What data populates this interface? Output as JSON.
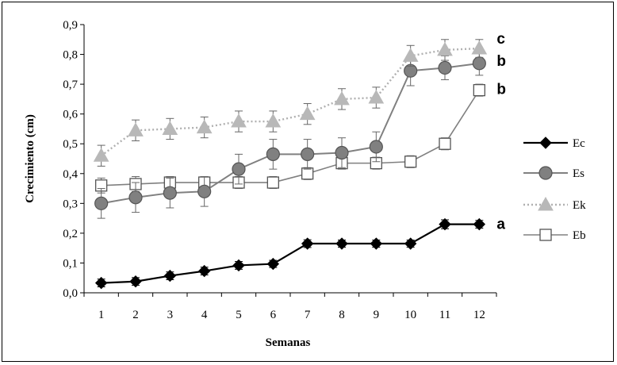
{
  "chart_data": {
    "type": "line",
    "xlabel": "Semanas",
    "ylabel": "Crecimiento (cm)",
    "x": [
      1,
      2,
      3,
      4,
      5,
      6,
      7,
      8,
      9,
      10,
      11,
      12
    ],
    "ylim": [
      0,
      0.9
    ],
    "yticks": [
      "0,0",
      "0,1",
      "0,2",
      "0,3",
      "0,4",
      "0,5",
      "0,6",
      "0,7",
      "0,8",
      "0,9"
    ],
    "yticks_values": [
      0,
      0.1,
      0.2,
      0.3,
      0.4,
      0.5,
      0.6,
      0.7,
      0.8,
      0.9
    ],
    "grid": false,
    "legend_position": "right",
    "series": [
      {
        "name": "Ec",
        "marker": "diamond",
        "line": "solid",
        "color": "#000000",
        "values": [
          0.033,
          0.038,
          0.057,
          0.073,
          0.092,
          0.097,
          0.165,
          0.165,
          0.165,
          0.165,
          0.23,
          0.23
        ],
        "errors": [
          0.013,
          0.013,
          0.013,
          0.013,
          0.013,
          0.012,
          0.013,
          0.012,
          0.012,
          0.012,
          0.015,
          0.013
        ],
        "annotation": "a"
      },
      {
        "name": "Es",
        "marker": "circle",
        "line": "solid",
        "color": "#808080",
        "values": [
          0.3,
          0.32,
          0.335,
          0.34,
          0.415,
          0.465,
          0.465,
          0.47,
          0.49,
          0.745,
          0.755,
          0.77
        ],
        "errors": [
          0.05,
          0.05,
          0.05,
          0.05,
          0.05,
          0.05,
          0.05,
          0.05,
          0.05,
          0.05,
          0.04,
          0.04
        ],
        "annotation": "b"
      },
      {
        "name": "Ek",
        "marker": "triangle",
        "line": "dotted",
        "color": "#b0b0b0",
        "values": [
          0.46,
          0.545,
          0.55,
          0.555,
          0.575,
          0.575,
          0.6,
          0.65,
          0.655,
          0.795,
          0.815,
          0.82
        ],
        "errors": [
          0.035,
          0.035,
          0.035,
          0.035,
          0.035,
          0.035,
          0.035,
          0.035,
          0.035,
          0.035,
          0.035,
          0.03
        ],
        "annotation": "c"
      },
      {
        "name": "Eb",
        "marker": "square",
        "line": "solid",
        "color": "#808080",
        "values": [
          0.36,
          0.365,
          0.37,
          0.37,
          0.37,
          0.37,
          0.4,
          0.435,
          0.435,
          0.44,
          0.5,
          0.68
        ],
        "errors": [
          0.025,
          0.025,
          0.02,
          0.02,
          0.02,
          0.02,
          0.02,
          0.02,
          0.02,
          0.02,
          0.02,
          0.02
        ],
        "annotation": "b"
      }
    ]
  }
}
